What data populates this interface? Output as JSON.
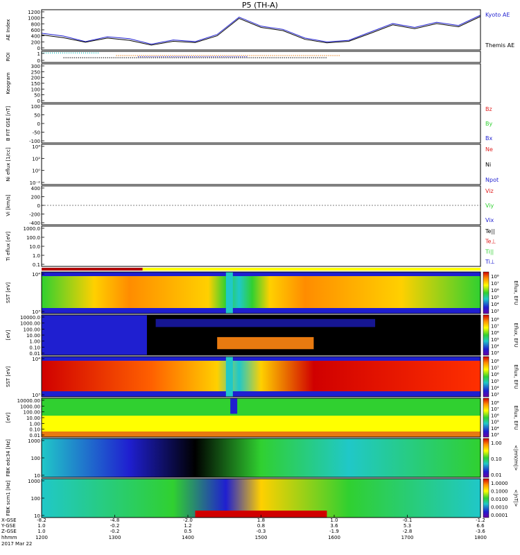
{
  "title": "P5 (TH-A)",
  "colors": {
    "red": "#e02020",
    "green": "#30d030",
    "blue": "#1f1fd0",
    "black": "#000000",
    "cyan": "#20c8c8",
    "orange": "#e87a10",
    "yellow": "#ffff00",
    "darkred": "#b00000"
  },
  "chart_data": [
    {
      "type": "line",
      "ylabel": "AE Index",
      "yticks": [
        "1200",
        "1000",
        "800",
        "600",
        "400",
        "200",
        "0"
      ],
      "ylim": [
        0,
        1250
      ],
      "x": [
        0,
        0.05,
        0.1,
        0.15,
        0.2,
        0.25,
        0.3,
        0.35,
        0.4,
        0.45,
        0.5,
        0.55,
        0.6,
        0.65,
        0.7,
        0.75,
        0.8,
        0.85,
        0.9,
        0.95,
        1.0
      ],
      "series": [
        {
          "name": "Kyoto AE",
          "color": "#1f1fd0",
          "values": [
            520,
            430,
            260,
            410,
            350,
            180,
            310,
            260,
            480,
            1020,
            740,
            640,
            370,
            250,
            300,
            560,
            820,
            700,
            860,
            760,
            1080
          ]
        },
        {
          "name": "Themis AE",
          "color": "#000000",
          "values": [
            470,
            380,
            240,
            370,
            300,
            150,
            270,
            230,
            440,
            980,
            700,
            600,
            330,
            220,
            270,
            520,
            780,
            660,
            820,
            720,
            1040
          ]
        }
      ]
    },
    {
      "type": "scatter",
      "ylabel": "ROI",
      "yticks": [
        "1",
        "0"
      ],
      "rows": [
        {
          "y": 0.85,
          "x0": 0.0,
          "x1": 0.13,
          "color": "#20c8c8"
        },
        {
          "y": 0.62,
          "x0": 0.17,
          "x1": 0.68,
          "color": "#e87a10"
        },
        {
          "y": 0.52,
          "x0": 0.22,
          "x1": 0.47,
          "color": "#1f1fd0"
        },
        {
          "y": 0.42,
          "x0": 0.05,
          "x1": 0.65,
          "color": "#000000"
        }
      ]
    },
    {
      "type": "line",
      "ylabel": "Keogram",
      "yticks": [
        "300",
        "250",
        "200",
        "150",
        "100",
        "50",
        "0"
      ]
    },
    {
      "type": "line",
      "ylabel": "B FIT GSE [nT]",
      "yticks": [
        "100",
        "50",
        "0",
        "-50",
        "-100"
      ],
      "ylim": [
        -100,
        100
      ],
      "series": [
        {
          "name": "Bz",
          "color": "#e02020"
        },
        {
          "name": "By",
          "color": "#30d030"
        },
        {
          "name": "Bx",
          "color": "#1f1fd0"
        }
      ]
    },
    {
      "type": "line",
      "ylabel": "Ni eflux [1/cc]",
      "yticks": [
        "10⁴",
        "10²",
        "10⁰",
        "10⁻²"
      ],
      "series": [
        {
          "name": "Ne",
          "color": "#e02020"
        },
        {
          "name": "Ni",
          "color": "#000000"
        },
        {
          "name": "Npot",
          "color": "#1f1fd0"
        }
      ]
    },
    {
      "type": "line",
      "ylabel": "Vi [km/s]",
      "yticks": [
        "400",
        "200",
        "0",
        "-200",
        "-400"
      ],
      "ylim": [
        -450,
        450
      ],
      "series": [
        {
          "name": "Viz",
          "color": "#e02020"
        },
        {
          "name": "Viy",
          "color": "#30d030"
        },
        {
          "name": "Vix",
          "color": "#1f1fd0"
        }
      ]
    },
    {
      "type": "line",
      "ylabel": "Ti eflux [eV]",
      "yticks": [
        "1000.0",
        "100.0",
        "10.0",
        "1.0",
        "0.1"
      ],
      "series": [
        {
          "name": "Te||",
          "color": "#000000"
        },
        {
          "name": "Te⊥",
          "color": "#e02020"
        },
        {
          "name": "Ti||",
          "color": "#30d030"
        },
        {
          "name": "Ti⊥",
          "color": "#1f1fd0"
        }
      ]
    },
    {
      "type": "heatmap",
      "ylabel": "SST [eV]",
      "yticks": [
        "10⁴",
        "10³"
      ],
      "cbar_label": "Eflux, EFU",
      "cbar_ticks": [
        "10⁸",
        "10⁷",
        "10⁶",
        "10⁵",
        "10⁴",
        "10³"
      ]
    },
    {
      "type": "heatmap",
      "ylabel": "[eV]",
      "yticks": [
        "10000.0",
        "1000.00",
        "100.00",
        "10.00",
        "1.00",
        "0.10",
        "0.01"
      ],
      "cbar_label": "Eflux, EFU",
      "cbar_ticks": [
        "10⁸",
        "10⁷",
        "10⁶",
        "10⁵",
        "10⁴",
        "10³"
      ]
    },
    {
      "type": "heatmap",
      "ylabel": "SST [eV]",
      "yticks": [
        "10⁴",
        "10³"
      ],
      "cbar_label": "Eflux, EFU",
      "cbar_ticks": [
        "10⁸",
        "10⁷",
        "10⁶",
        "10⁵",
        "10⁴",
        "10³"
      ]
    },
    {
      "type": "heatmap",
      "ylabel": "[eV]",
      "yticks": [
        "10000.00",
        "1000.00",
        "100.00",
        "10.00",
        "1.00",
        "0.10",
        "0.01"
      ],
      "cbar_label": "Eflux, EFU",
      "cbar_ticks": [
        "10⁸",
        "10⁷",
        "10⁶",
        "10⁵",
        "10⁴",
        "10³"
      ]
    },
    {
      "type": "heatmap",
      "ylabel": "FBK edc34 [Hz]",
      "yticks": [
        "1000",
        "100",
        "10"
      ],
      "cbar_label": "<|mV/m|>",
      "cbar_ticks": [
        "1.00",
        "0.10",
        "0.01"
      ]
    },
    {
      "type": "heatmap",
      "ylabel": "FBK scm1 [Hz]",
      "yticks": [
        "1000",
        "100",
        "10"
      ],
      "cbar_label": "<|nT|>",
      "cbar_ticks": [
        "1.0000",
        "0.1000",
        "0.0100",
        "0.0010",
        "0.0001"
      ]
    }
  ],
  "xaxis": {
    "row_labels": [
      "X-GSE",
      "Y-GSE",
      "Z-GSE",
      "hhmm",
      "2017 Mar 22"
    ],
    "columns": [
      {
        "x": "-8.2",
        "y": "1.0",
        "z": "1.0",
        "t": "1200"
      },
      {
        "x": "-4.8",
        "y": "-0.2",
        "z": "-0.2",
        "t": "1300"
      },
      {
        "x": "-2.0",
        "y": "1.2",
        "z": "0.5",
        "t": "1400"
      },
      {
        "x": "1.8",
        "y": "0.8",
        "z": "-0.3",
        "t": "1500"
      },
      {
        "x": "1.0",
        "y": "3.6",
        "z": "-1.9",
        "t": "1600"
      },
      {
        "x": "-0.1",
        "y": "5.3",
        "z": "-2.8",
        "t": "1700"
      },
      {
        "x": "-1.2",
        "y": "6.6",
        "z": "-3.6",
        "t": "1800"
      }
    ]
  }
}
